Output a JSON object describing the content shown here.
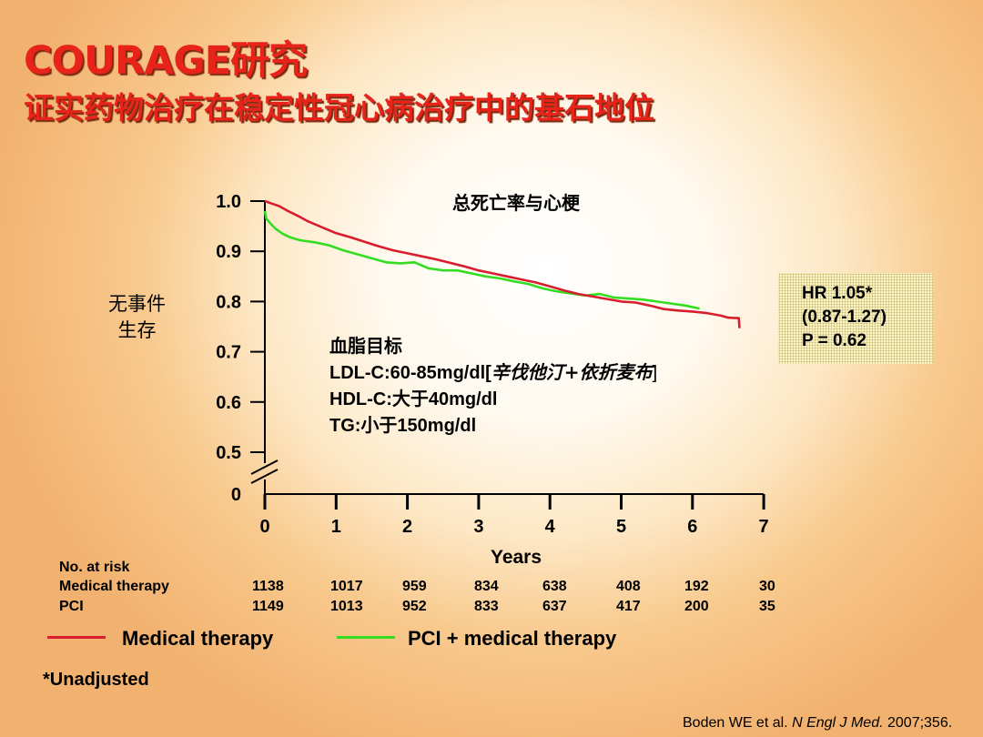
{
  "slide": {
    "title": "COURAGE研究",
    "subtitle": "证实药物治疗在稳定性冠心病治疗中的基石地位",
    "note": "*Unadjusted",
    "citation": {
      "authors": "Boden WE et al. ",
      "journal": "N Engl J Med.",
      "detail": " 2007;356."
    }
  },
  "chart_data": {
    "type": "line",
    "title": "总死亡率与心梗",
    "xlabel": "Years",
    "ylabel_lines": [
      "无事件",
      "生存"
    ],
    "x_ticks": [
      "0",
      "1",
      "2",
      "3",
      "4",
      "5",
      "6",
      "7"
    ],
    "y_ticks": [
      "1.0",
      "0.9",
      "0.8",
      "0.7",
      "0.6",
      "0.5",
      "0"
    ],
    "xlim": [
      0,
      7
    ],
    "ylim": [
      0.5,
      1.0
    ],
    "axis_break": true,
    "colors": {
      "medical": "#d81e2e",
      "pci": "#33dd22"
    },
    "series": [
      {
        "name": "Medical therapy",
        "key": "medical",
        "x": [
          0,
          0.1,
          0.2,
          0.3,
          0.4,
          0.5,
          0.6,
          0.8,
          1.0,
          1.2,
          1.4,
          1.6,
          1.8,
          2.0,
          2.2,
          2.4,
          2.6,
          2.8,
          3.0,
          3.2,
          3.4,
          3.6,
          3.8,
          4.0,
          4.2,
          4.4,
          4.6,
          4.8,
          5.0,
          5.2,
          5.4,
          5.6,
          5.8,
          6.0,
          6.2,
          6.4,
          6.5,
          6.6,
          6.65,
          6.66
        ],
        "values": [
          1.0,
          0.995,
          0.99,
          0.982,
          0.975,
          0.968,
          0.96,
          0.948,
          0.936,
          0.928,
          0.919,
          0.91,
          0.902,
          0.896,
          0.89,
          0.884,
          0.877,
          0.87,
          0.862,
          0.856,
          0.85,
          0.844,
          0.838,
          0.83,
          0.822,
          0.815,
          0.81,
          0.805,
          0.8,
          0.798,
          0.792,
          0.785,
          0.782,
          0.78,
          0.777,
          0.772,
          0.768,
          0.767,
          0.767,
          0.747
        ]
      },
      {
        "name": "PCI + medical therapy",
        "key": "pci",
        "x": [
          0,
          0.02,
          0.08,
          0.15,
          0.25,
          0.35,
          0.5,
          0.7,
          0.9,
          1.1,
          1.3,
          1.5,
          1.7,
          1.9,
          2.1,
          2.3,
          2.5,
          2.7,
          2.9,
          3.1,
          3.3,
          3.5,
          3.7,
          3.9,
          4.1,
          4.3,
          4.5,
          4.7,
          4.9,
          5.1,
          5.3,
          5.5,
          5.7,
          5.9,
          6.1
        ],
        "values": [
          0.98,
          0.965,
          0.955,
          0.945,
          0.935,
          0.928,
          0.922,
          0.918,
          0.912,
          0.902,
          0.894,
          0.886,
          0.878,
          0.876,
          0.878,
          0.866,
          0.862,
          0.862,
          0.856,
          0.85,
          0.846,
          0.84,
          0.835,
          0.826,
          0.82,
          0.816,
          0.812,
          0.815,
          0.808,
          0.806,
          0.804,
          0.8,
          0.796,
          0.792,
          0.786
        ]
      }
    ],
    "annotation_target": {
      "heading": "血脂目标",
      "ldl_prefix": "LDL-C:60-85mg/dl[",
      "ldl_drugs": "辛伐他汀+依折麦布",
      "ldl_suffix": "]",
      "hdl": "HDL-C:大于40mg/dl",
      "tg": "TG:小于150mg/dl"
    },
    "hr_box": {
      "line1": "HR 1.05*",
      "line2": "(0.87-1.27)",
      "line3": "P = 0.62"
    },
    "risk_table": {
      "header": "No. at risk",
      "rows": [
        {
          "label": "Medical therapy",
          "values": [
            "1138",
            "1017",
            "959",
            "834",
            "638",
            "408",
            "192",
            "30"
          ]
        },
        {
          "label": "PCI",
          "values": [
            "1149",
            "1013",
            "952",
            "833",
            "637",
            "417",
            "200",
            "35"
          ]
        }
      ]
    },
    "legend": [
      {
        "label": "Medical therapy",
        "key": "medical"
      },
      {
        "label": "PCI + medical therapy",
        "key": "pci"
      }
    ]
  }
}
